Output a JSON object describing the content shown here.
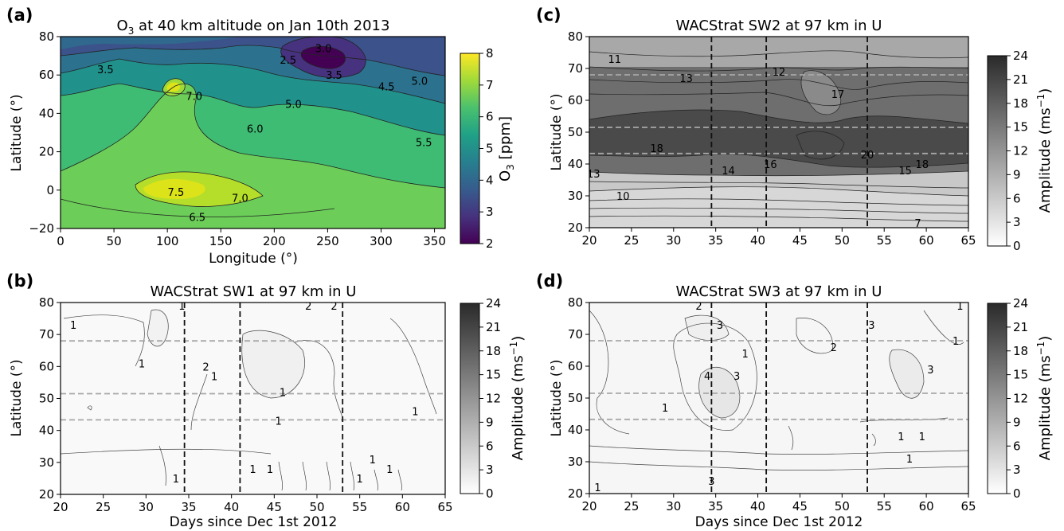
{
  "figure": {
    "panels": [
      {
        "id": "a",
        "letter": "(a)",
        "title_parts": [
          "O",
          "3",
          " at 40 km altitude on Jan 10th 2013"
        ],
        "xlabel": "Longitude (°)",
        "ylabel": "Latitude (°)",
        "colorbar": {
          "label_parts": [
            "O",
            "3",
            " [ppm]"
          ],
          "ticks": [
            "2",
            "3",
            "4",
            "5",
            "6",
            "7",
            "8"
          ],
          "range": [
            2,
            8
          ],
          "colors": [
            "#440154",
            "#46327e",
            "#365c8d",
            "#277f8e",
            "#1fa187",
            "#4ac16d",
            "#a0da39",
            "#fde725"
          ]
        }
      },
      {
        "id": "b",
        "letter": "(b)",
        "title": "WACStrat SW1 at 97 km in U",
        "xlabel": "Days since Dec 1st 2012",
        "ylabel": "Latitude (°)",
        "colorbar": {
          "label_parts": [
            "Amplitude (ms",
            "−1",
            ")"
          ],
          "ticks": [
            "0",
            "3",
            "6",
            "9",
            "12",
            "15",
            "18",
            "21",
            "24"
          ],
          "range": [
            0,
            24
          ]
        }
      },
      {
        "id": "c",
        "letter": "(c)",
        "title": "WACStrat SW2 at 97 km in U",
        "xlabel": "",
        "ylabel": "Latitude (°)",
        "colorbar": {
          "label_parts": [
            "Amplitude (ms",
            "−1",
            ")"
          ],
          "ticks": [
            "0",
            "3",
            "6",
            "9",
            "12",
            "15",
            "18",
            "21",
            "24"
          ],
          "range": [
            0,
            24
          ]
        }
      },
      {
        "id": "d",
        "letter": "(d)",
        "title": "WACStrat SW3 at 97 km in U",
        "xlabel": "Days since Dec 1st 2012",
        "ylabel": "Latitude (°)",
        "colorbar": {
          "label_parts": [
            "Amplitude (ms",
            "−1",
            ")"
          ],
          "ticks": [
            "0",
            "3",
            "6",
            "9",
            "12",
            "15",
            "18",
            "21",
            "24"
          ],
          "range": [
            0,
            24
          ]
        }
      }
    ]
  },
  "chart_data": [
    {
      "type": "heatmap",
      "panel": "a",
      "xlim": [
        0,
        360
      ],
      "ylim": [
        -20,
        80
      ],
      "xticks": [
        0,
        50,
        100,
        150,
        200,
        250,
        300,
        350
      ],
      "yticks": [
        -20,
        0,
        20,
        40,
        60,
        80
      ],
      "contour_labels": [
        {
          "text": "3.5",
          "x": 42,
          "y": 63
        },
        {
          "text": "2.5",
          "x": 213,
          "y": 68
        },
        {
          "text": "3.0",
          "x": 246,
          "y": 74
        },
        {
          "text": "3.5",
          "x": 256,
          "y": 60
        },
        {
          "text": "4.5",
          "x": 305,
          "y": 54
        },
        {
          "text": "5.0",
          "x": 336,
          "y": 57
        },
        {
          "text": "7.0",
          "x": 125,
          "y": 49
        },
        {
          "text": "5.0",
          "x": 218,
          "y": 45
        },
        {
          "text": "6.0",
          "x": 182,
          "y": 32
        },
        {
          "text": "5.5",
          "x": 340,
          "y": 25
        },
        {
          "text": "7.5",
          "x": 108,
          "y": -1
        },
        {
          "text": "7.0",
          "x": 168,
          "y": -4
        },
        {
          "text": "6.5",
          "x": 128,
          "y": -14
        }
      ]
    },
    {
      "type": "heatmap",
      "panel": "b",
      "xlim": [
        20,
        65
      ],
      "ylim": [
        20,
        80
      ],
      "xticks": [
        20,
        25,
        30,
        35,
        40,
        45,
        50,
        55,
        60,
        65
      ],
      "yticks": [
        20,
        30,
        40,
        50,
        60,
        70,
        80
      ],
      "vlines": [
        34.5,
        41,
        53
      ],
      "hlines": [
        43.3,
        51.5,
        68
      ],
      "contour_labels": [
        {
          "text": "1",
          "x": 21.5,
          "y": 73
        },
        {
          "text": "1",
          "x": 29.5,
          "y": 61
        },
        {
          "text": "2",
          "x": 37,
          "y": 60
        },
        {
          "text": "1",
          "x": 38,
          "y": 57
        },
        {
          "text": "1",
          "x": 46,
          "y": 52
        },
        {
          "text": "1",
          "x": 45.5,
          "y": 43
        },
        {
          "text": "1",
          "x": 61.5,
          "y": 46
        },
        {
          "text": "1",
          "x": 34.2,
          "y": 79
        },
        {
          "text": "2",
          "x": 49,
          "y": 79
        },
        {
          "text": "2",
          "x": 52,
          "y": 79
        },
        {
          "text": "1",
          "x": 33.5,
          "y": 25
        },
        {
          "text": "1",
          "x": 42.5,
          "y": 28
        },
        {
          "text": "1",
          "x": 44.5,
          "y": 28
        },
        {
          "text": "1",
          "x": 56.5,
          "y": 31
        },
        {
          "text": "1",
          "x": 58.5,
          "y": 28
        },
        {
          "text": "1",
          "x": 55,
          "y": 25
        }
      ]
    },
    {
      "type": "heatmap",
      "panel": "c",
      "xlim": [
        20,
        65
      ],
      "ylim": [
        20,
        80
      ],
      "xticks": [
        20,
        25,
        30,
        35,
        40,
        45,
        50,
        55,
        60,
        65
      ],
      "yticks": [
        20,
        30,
        40,
        50,
        60,
        70,
        80
      ],
      "vlines": [
        34.5,
        41,
        53
      ],
      "hlines": [
        43.3,
        51.5,
        68
      ],
      "contour_labels": [
        {
          "text": "11",
          "x": 23,
          "y": 73
        },
        {
          "text": "13",
          "x": 31.5,
          "y": 67
        },
        {
          "text": "12",
          "x": 42.5,
          "y": 69
        },
        {
          "text": "17",
          "x": 49.5,
          "y": 62
        },
        {
          "text": "18",
          "x": 28,
          "y": 45
        },
        {
          "text": "20",
          "x": 53,
          "y": 43
        },
        {
          "text": "14",
          "x": 36.5,
          "y": 38
        },
        {
          "text": "16",
          "x": 41.5,
          "y": 40
        },
        {
          "text": "15",
          "x": 57.5,
          "y": 38
        },
        {
          "text": "18",
          "x": 59.5,
          "y": 40
        },
        {
          "text": "13",
          "x": 20.5,
          "y": 37
        },
        {
          "text": "10",
          "x": 24,
          "y": 30
        },
        {
          "text": "7",
          "x": 59,
          "y": 21.5
        }
      ]
    },
    {
      "type": "heatmap",
      "panel": "d",
      "xlim": [
        20,
        65
      ],
      "ylim": [
        20,
        80
      ],
      "xticks": [
        20,
        25,
        30,
        35,
        40,
        45,
        50,
        55,
        60,
        65
      ],
      "yticks": [
        20,
        30,
        40,
        50,
        60,
        70,
        80
      ],
      "vlines": [
        34.5,
        41,
        53
      ],
      "hlines": [
        43.3,
        51.5,
        68
      ],
      "contour_labels": [
        {
          "text": "3",
          "x": 35.5,
          "y": 73
        },
        {
          "text": "1",
          "x": 38.5,
          "y": 64
        },
        {
          "text": "2",
          "x": 49,
          "y": 66
        },
        {
          "text": "3",
          "x": 53.5,
          "y": 73
        },
        {
          "text": "1",
          "x": 63.5,
          "y": 68
        },
        {
          "text": "4",
          "x": 34,
          "y": 57
        },
        {
          "text": "3",
          "x": 37.5,
          "y": 57
        },
        {
          "text": "3",
          "x": 60.5,
          "y": 59
        },
        {
          "text": "1",
          "x": 29,
          "y": 47
        },
        {
          "text": "1",
          "x": 57,
          "y": 38
        },
        {
          "text": "1",
          "x": 59.5,
          "y": 38
        },
        {
          "text": "1",
          "x": 58,
          "y": 31
        },
        {
          "text": "3",
          "x": 34.5,
          "y": 24
        },
        {
          "text": "1",
          "x": 21,
          "y": 22
        },
        {
          "text": "2",
          "x": 33,
          "y": 79
        },
        {
          "text": "1",
          "x": 64,
          "y": 79
        }
      ]
    }
  ]
}
